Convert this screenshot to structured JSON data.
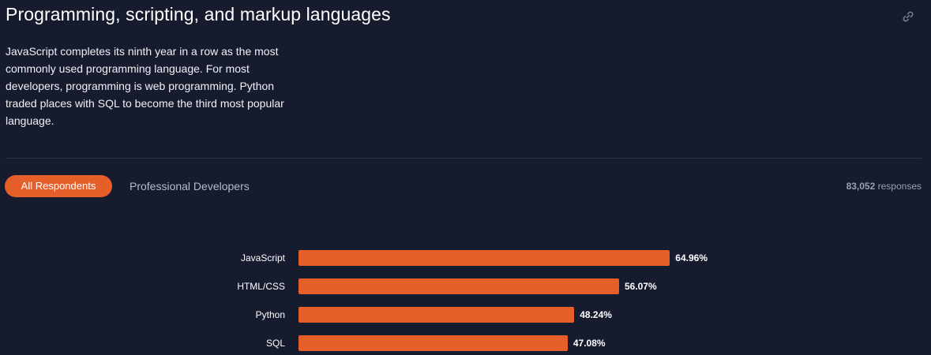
{
  "section": {
    "title": "Programming, scripting, and markup languages",
    "description": "JavaScript completes its ninth year in a row as the most commonly used programming language. For most developers, programming is web programming. Python traded places with SQL to become the third most popular language.",
    "link_icon": "link-icon"
  },
  "tabs": [
    {
      "label": "All Respondents",
      "active": true
    },
    {
      "label": "Professional Developers",
      "active": false
    }
  ],
  "responses": {
    "count": "83,052",
    "label": "responses"
  },
  "colors": {
    "background": "#161b2e",
    "accent": "#e65f2b",
    "divider": "#2c3347"
  },
  "chart_data": {
    "type": "bar",
    "orientation": "horizontal",
    "categories": [
      "JavaScript",
      "HTML/CSS",
      "Python",
      "SQL"
    ],
    "values": [
      64.96,
      56.07,
      48.24,
      47.08
    ],
    "value_labels": [
      "64.96%",
      "56.07%",
      "48.24%",
      "47.08%"
    ],
    "unit": "%",
    "xlim": [
      0,
      100
    ],
    "grid": false
  }
}
